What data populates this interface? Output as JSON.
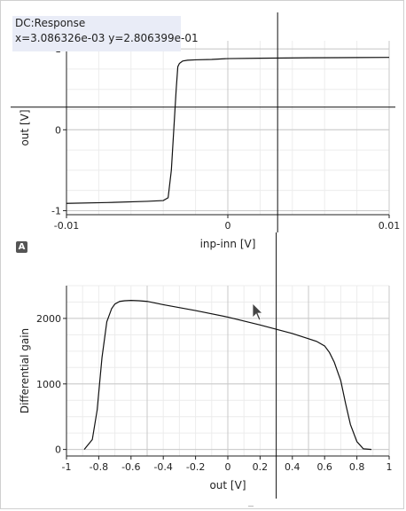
{
  "readout": {
    "title": "DC:Response",
    "coords": "x=3.086326e-03 y=2.806399e-01"
  },
  "plot_top": {
    "xlabel": "inp-inn [V]",
    "ylabel": "out [V]",
    "x_ticks": [
      "-0.01",
      "0",
      "0.01"
    ],
    "y_ticks": [
      "1",
      "0",
      "-1"
    ]
  },
  "plot_bottom": {
    "xlabel": "out [V]",
    "ylabel": "Differential gain",
    "x_ticks": [
      "-1",
      "-0.8",
      "-0.6",
      "-0.4",
      "-0.2",
      "0",
      "0.2",
      "0.4",
      "0.6",
      "0.8",
      "1"
    ],
    "y_ticks": [
      "2000",
      "1000",
      "0"
    ]
  },
  "autoscale_icon": "A",
  "chart_data": [
    {
      "type": "line",
      "xlabel": "inp-inn [V]",
      "ylabel": "out [V]",
      "xlim": [
        -0.01,
        0.01
      ],
      "ylim": [
        -1.05,
        1.1
      ],
      "grid": true,
      "series": [
        {
          "x": [
            -0.01,
            -0.0075,
            -0.005,
            -0.004,
            -0.0037,
            -0.0035,
            -0.00335,
            -0.0032,
            -0.0031,
            -0.003,
            -0.0028,
            -0.0025,
            -0.002,
            -0.001,
            0.0,
            0.002,
            0.005,
            0.008,
            0.01
          ],
          "y": [
            -0.91,
            -0.9,
            -0.885,
            -0.875,
            -0.84,
            -0.5,
            0.0,
            0.5,
            0.78,
            0.82,
            0.85,
            0.86,
            0.865,
            0.87,
            0.88,
            0.885,
            0.89,
            0.893,
            0.895
          ]
        }
      ],
      "crosshair": {
        "x": 0.003086326,
        "y": 0.2806399
      }
    },
    {
      "type": "line",
      "xlabel": "out [V]",
      "ylabel": "Differential gain",
      "xlim": [
        -1,
        1
      ],
      "ylim": [
        -100,
        2500
      ],
      "grid": true,
      "series": [
        {
          "x": [
            -0.89,
            -0.84,
            -0.81,
            -0.78,
            -0.75,
            -0.72,
            -0.7,
            -0.67,
            -0.64,
            -0.6,
            -0.55,
            -0.5,
            -0.4,
            -0.2,
            0.0,
            0.2,
            0.4,
            0.55,
            0.6,
            0.63,
            0.66,
            0.7,
            0.73,
            0.76,
            0.8,
            0.84,
            0.89
          ],
          "y": [
            0,
            150,
            600,
            1400,
            1950,
            2150,
            2220,
            2260,
            2270,
            2275,
            2270,
            2260,
            2210,
            2120,
            2020,
            1900,
            1770,
            1650,
            1580,
            1480,
            1330,
            1050,
            700,
            380,
            120,
            10,
            0
          ]
        }
      ],
      "crosshair": {
        "x": 0.3
      }
    }
  ]
}
